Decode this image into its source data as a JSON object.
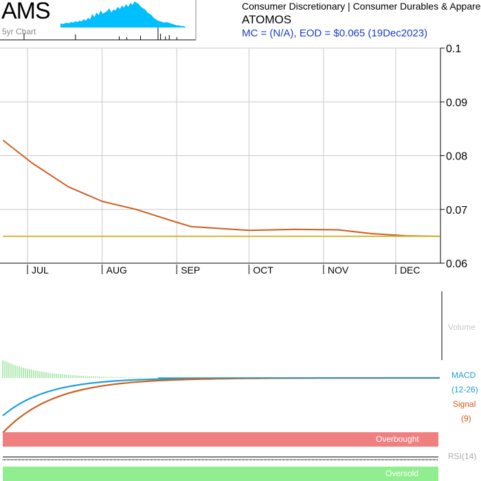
{
  "header": {
    "ticker": "AMS",
    "thumb_label": "5yr Chart",
    "sector": "Consumer Discretionary | Consumer Durables & Apparel",
    "company": "ATOMOS",
    "mc_eod": "MC = (N/A), EOD = $0.065 (19Dec2023)"
  },
  "colors": {
    "price": "#d05c1c",
    "ma": "#d4b43c",
    "grid": "#c8c8c8",
    "macd": "#1aa0d8",
    "signal": "#d05c1c",
    "histogram": "#90e090",
    "overbought": "#f08080",
    "oversold": "#90ee90",
    "thumb_fill": "#00bfff",
    "eod_text": "#1a3cc8"
  },
  "labels": {
    "volume": "Volume",
    "macd": "MACD",
    "macd_param": "(12-26)",
    "signal": "Signal",
    "signal_param": "(9)",
    "rsi": "RSI(14)",
    "overbought": "Overbought",
    "oversold": "Oversold"
  },
  "chart_data": {
    "type": "line",
    "x_labels": [
      "JUL",
      "AUG",
      "SEP",
      "OCT",
      "NOV",
      "DEC"
    ],
    "y_ticks": [
      0.1,
      0.09,
      0.08,
      0.07,
      0.06
    ],
    "ylim": [
      0.06,
      0.1
    ],
    "grid": true,
    "series": [
      {
        "role": "price",
        "x": [
          "2023-06-21",
          "2023-07-03",
          "2023-07-18",
          "2023-08-01",
          "2023-08-15",
          "2023-09-01",
          "2023-09-07",
          "2023-10-01",
          "2023-10-20",
          "2023-11-07",
          "2023-11-21",
          "2023-12-05",
          "2023-12-19"
        ],
        "values": [
          0.0828,
          0.0786,
          0.0742,
          0.0715,
          0.07,
          0.0676,
          0.0668,
          0.0661,
          0.0663,
          0.0662,
          0.0655,
          0.0651,
          0.065
        ]
      },
      {
        "role": "moving-average",
        "x": [
          "2023-06-21",
          "2023-12-19"
        ],
        "values": [
          0.065,
          0.065
        ]
      }
    ]
  },
  "thumb_area": [
    6,
    5,
    6,
    7,
    6,
    8,
    7,
    9,
    8,
    10,
    9,
    12,
    10,
    14,
    12,
    20,
    15,
    22,
    18,
    25,
    20,
    22,
    24,
    28,
    22,
    26,
    25,
    30,
    27,
    32,
    29,
    34,
    30,
    36,
    33,
    38,
    36,
    34,
    30,
    28,
    26,
    22,
    20,
    18,
    14,
    12,
    10,
    9,
    8,
    7,
    8,
    7,
    6,
    5,
    4,
    3,
    3,
    2,
    2,
    1
  ],
  "volume_ticks": [
    {
      "pos": 0.12,
      "h": 8
    },
    {
      "pos": 0.47,
      "h": 5
    },
    {
      "pos": 0.53,
      "h": 4
    },
    {
      "pos": 0.64,
      "h": 6
    },
    {
      "pos": 0.78,
      "h": 18
    },
    {
      "pos": 0.8,
      "h": 9
    },
    {
      "pos": 0.84,
      "h": 5
    },
    {
      "pos": 0.87,
      "h": 7
    },
    {
      "pos": 0.93,
      "h": 4
    }
  ]
}
